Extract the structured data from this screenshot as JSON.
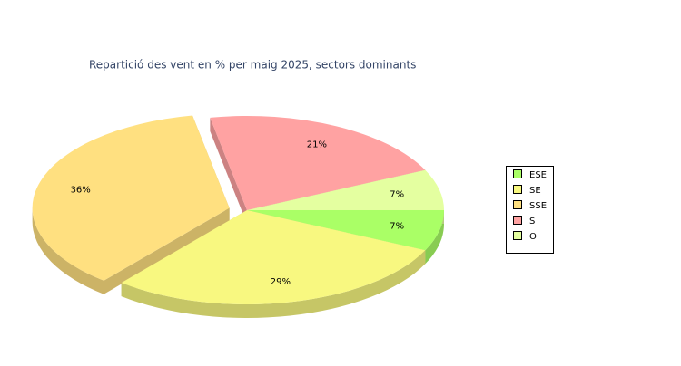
{
  "chart_data": {
    "type": "pie3d",
    "title": "Repartició des vent en % per maig 2025, sectors dominants",
    "categories": [
      "ESE",
      "SE",
      "SSE",
      "S",
      "O"
    ],
    "values": [
      7,
      29,
      36,
      21,
      7
    ],
    "value_labels": [
      "7%",
      "29%",
      "36%",
      "21%",
      "7%"
    ],
    "colors": [
      "#aaff66",
      "#f8f880",
      "#ffe080",
      "#ffa2a2",
      "#e4ffa0"
    ],
    "exploded": [
      false,
      false,
      true,
      false,
      false
    ],
    "legend": "right"
  }
}
